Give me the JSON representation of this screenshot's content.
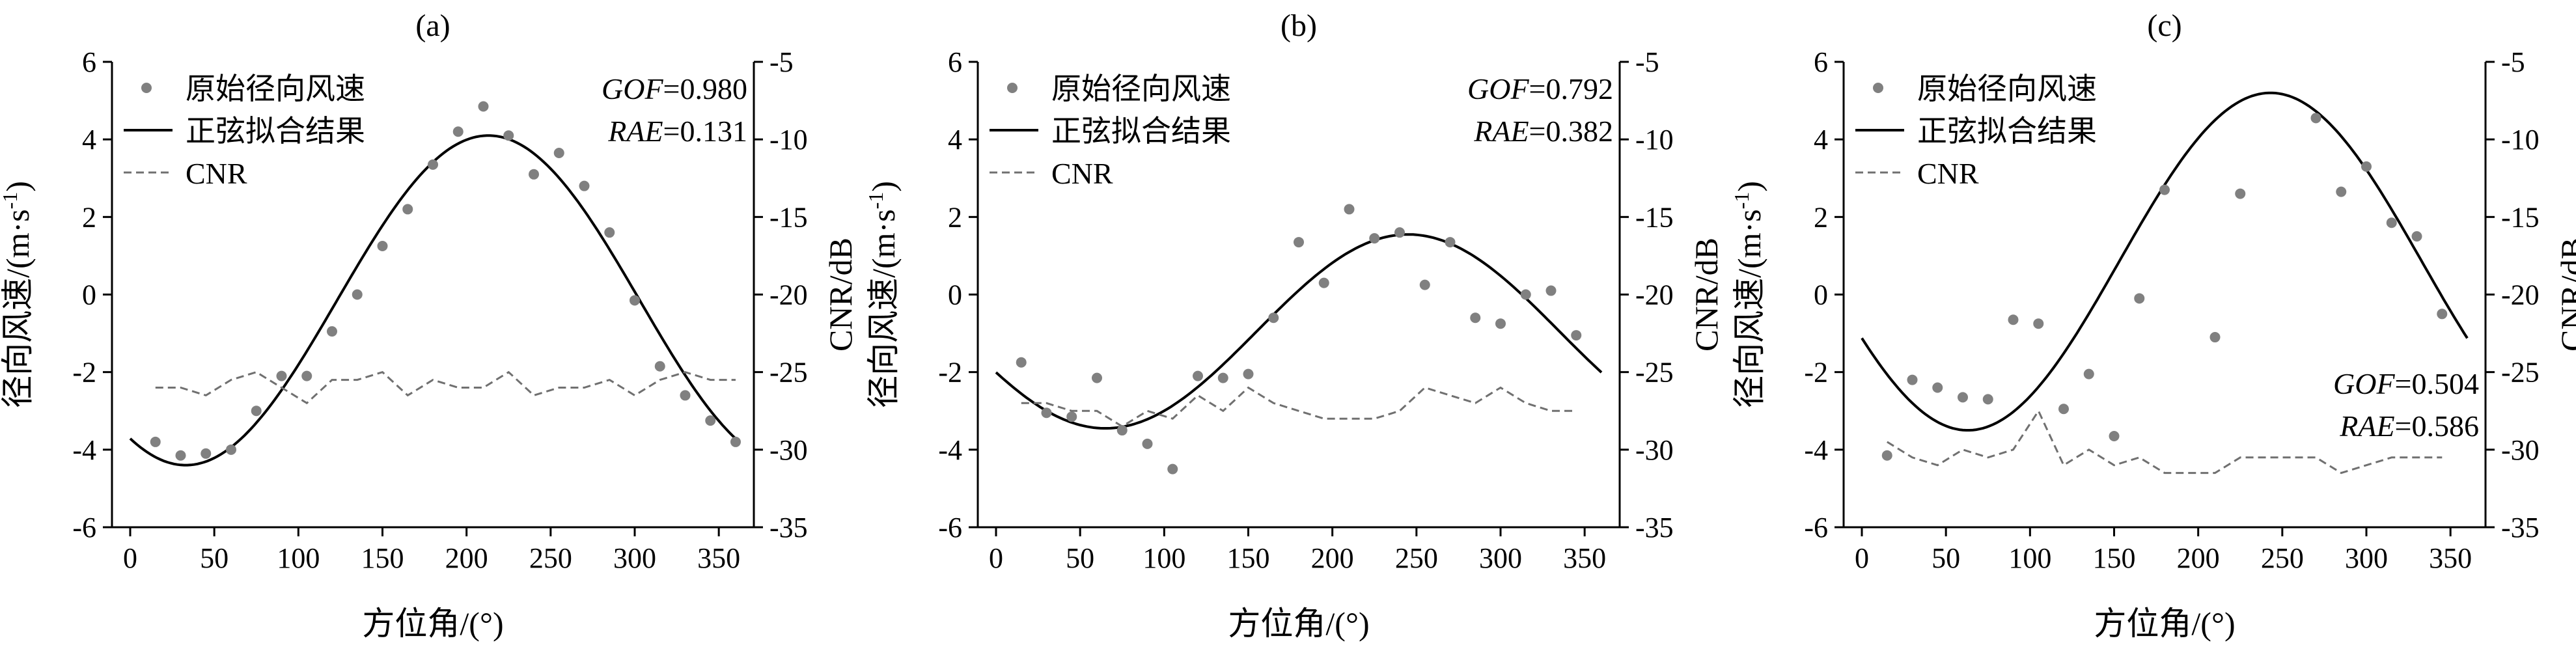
{
  "colors": {
    "points": "#808080",
    "fit": "#000000",
    "cnr": "#707070"
  },
  "chart_data": [
    {
      "type": "scatter",
      "panel_title": "(a)",
      "xlabel": "方位角/(°)",
      "ylabel": "径向风速/(m·s",
      "ylabel_sup": "-1",
      "ylabel_close": ")",
      "y2label": "CNR/dB",
      "xlim": [
        0,
        360
      ],
      "ylim": [
        -6,
        6
      ],
      "y2lim": [
        -35,
        -5
      ],
      "xticks": [
        "0",
        "50",
        "100",
        "150",
        "200",
        "250",
        "300",
        "350"
      ],
      "yticks": [
        "-6",
        "-4",
        "-2",
        "0",
        "2",
        "4",
        "6"
      ],
      "y2ticks": [
        "-35",
        "-30",
        "-25",
        "-20",
        "-15",
        "-10",
        "-5"
      ],
      "legend": [
        "原始径向风速",
        "正弦拟合结果",
        "CNR"
      ],
      "legend_position": "top-left",
      "stats": {
        "gof_label": "GOF",
        "gof_value": "=0.980",
        "rae_label": "RAE",
        "rae_value": "=0.131",
        "position": "top-right"
      },
      "series": [
        {
          "kind": "points",
          "x": [
            15,
            30,
            45,
            60,
            75,
            90,
            105,
            120,
            135,
            150,
            165,
            180,
            195,
            210,
            225,
            240,
            255,
            270,
            285,
            300,
            315,
            330,
            345,
            360
          ],
          "y": [
            -3.8,
            -4.15,
            -4.1,
            -4.0,
            -3.0,
            -2.1,
            -2.1,
            -0.95,
            0.0,
            1.25,
            2.2,
            3.35,
            4.2,
            4.85,
            4.1,
            3.1,
            3.65,
            2.8,
            1.6,
            -0.15,
            -1.85,
            -2.6,
            -3.25,
            -3.8
          ]
        },
        {
          "kind": "sine",
          "amplitude": 4.25,
          "offset": -0.15,
          "phase_deg": 213
        },
        {
          "kind": "cnr",
          "x": [
            15,
            30,
            45,
            60,
            75,
            90,
            105,
            120,
            135,
            150,
            165,
            180,
            195,
            210,
            225,
            240,
            255,
            270,
            285,
            300,
            315,
            330,
            345,
            360
          ],
          "y": [
            -26.0,
            -26.0,
            -26.5,
            -25.5,
            -25.0,
            -26.0,
            -27.0,
            -25.5,
            -25.5,
            -25.0,
            -26.5,
            -25.5,
            -26.0,
            -26.0,
            -25.0,
            -26.5,
            -26.0,
            -26.0,
            -25.5,
            -26.5,
            -25.5,
            -25.0,
            -25.5,
            -25.5
          ]
        }
      ]
    },
    {
      "type": "scatter",
      "panel_title": "(b)",
      "xlabel": "方位角/(°)",
      "ylabel": "径向风速/(m·s",
      "ylabel_sup": "-1",
      "ylabel_close": ")",
      "y2label": "CNR/dB",
      "xlim": [
        0,
        360
      ],
      "ylim": [
        -6,
        6
      ],
      "y2lim": [
        -35,
        -5
      ],
      "xticks": [
        "0",
        "50",
        "100",
        "150",
        "200",
        "250",
        "300",
        "350"
      ],
      "yticks": [
        "-6",
        "-4",
        "-2",
        "0",
        "2",
        "4",
        "6"
      ],
      "y2ticks": [
        "-35",
        "-30",
        "-25",
        "-20",
        "-15",
        "-10",
        "-5"
      ],
      "legend": [
        "原始径向风速",
        "正弦拟合结果",
        "CNR"
      ],
      "legend_position": "top-left",
      "stats": {
        "gof_label": "GOF",
        "gof_value": "=0.792",
        "rae_label": "RAE",
        "rae_value": "=0.382",
        "position": "top-right"
      },
      "series": [
        {
          "kind": "points",
          "x": [
            15,
            30,
            45,
            60,
            75,
            90,
            105,
            120,
            135,
            150,
            165,
            180,
            195,
            210,
            225,
            240,
            255,
            270,
            285,
            300,
            315,
            330,
            345
          ],
          "y": [
            -1.75,
            -3.05,
            -3.15,
            -2.15,
            -3.5,
            -3.85,
            -4.5,
            -2.1,
            -2.15,
            -2.05,
            -0.6,
            1.35,
            0.3,
            2.2,
            1.45,
            1.6,
            0.25,
            1.35,
            -0.6,
            -0.75,
            0.0,
            0.1,
            -1.05
          ]
        },
        {
          "kind": "sine",
          "amplitude": 2.5,
          "offset": -0.95,
          "phase_deg": 245
        },
        {
          "kind": "cnr",
          "x": [
            15,
            30,
            45,
            60,
            75,
            90,
            105,
            120,
            135,
            150,
            165,
            180,
            195,
            210,
            225,
            240,
            255,
            270,
            285,
            300,
            315,
            330,
            345
          ],
          "y": [
            -27.0,
            -27.0,
            -27.5,
            -27.5,
            -28.5,
            -27.5,
            -28.0,
            -26.5,
            -27.5,
            -26.0,
            -27.0,
            -27.5,
            -28.0,
            -28.0,
            -28.0,
            -27.5,
            -26.0,
            -26.5,
            -27.0,
            -26.0,
            -27.0,
            -27.5,
            -27.5
          ]
        }
      ]
    },
    {
      "type": "scatter",
      "panel_title": "(c)",
      "xlabel": "方位角/(°)",
      "ylabel": "径向风速/(m·s",
      "ylabel_sup": "-1",
      "ylabel_close": ")",
      "y2label": "CNR/dB",
      "xlim": [
        0,
        360
      ],
      "ylim": [
        -6,
        6
      ],
      "y2lim": [
        -35,
        -5
      ],
      "xticks": [
        "0",
        "50",
        "100",
        "150",
        "200",
        "250",
        "300",
        "350"
      ],
      "yticks": [
        "-6",
        "-4",
        "-2",
        "0",
        "2",
        "4",
        "6"
      ],
      "y2ticks": [
        "-35",
        "-30",
        "-25",
        "-20",
        "-15",
        "-10",
        "-5"
      ],
      "legend": [
        "原始径向风速",
        "正弦拟合结果",
        "CNR"
      ],
      "legend_position": "top-left",
      "stats": {
        "gof_label": "GOF",
        "gof_value": "=0.504",
        "rae_label": "RAE",
        "rae_value": "=0.586",
        "position": "bottom-right"
      },
      "series": [
        {
          "kind": "points",
          "x": [
            15,
            30,
            45,
            60,
            75,
            90,
            105,
            120,
            135,
            150,
            165,
            180,
            210,
            225,
            270,
            285,
            300,
            315,
            330,
            345
          ],
          "y": [
            -4.15,
            -2.2,
            -2.4,
            -2.65,
            -2.7,
            -0.65,
            -0.75,
            -2.95,
            -2.05,
            -3.65,
            -0.1,
            2.7,
            -1.1,
            2.6,
            4.55,
            2.65,
            3.3,
            1.85,
            1.5,
            -0.5
          ]
        },
        {
          "kind": "sine",
          "amplitude": 4.35,
          "offset": 0.85,
          "phase_deg": 243
        },
        {
          "kind": "cnr",
          "x": [
            15,
            30,
            45,
            60,
            75,
            90,
            105,
            120,
            135,
            150,
            165,
            180,
            195,
            210,
            225,
            240,
            255,
            270,
            285,
            300,
            315,
            330,
            345
          ],
          "y": [
            -29.5,
            -30.5,
            -31.0,
            -30.0,
            -30.5,
            -30.0,
            -27.5,
            -31.0,
            -30.0,
            -31.0,
            -30.5,
            -31.5,
            -31.5,
            -31.5,
            -30.5,
            -30.5,
            -30.5,
            -30.5,
            -31.5,
            -31.0,
            -30.5,
            -30.5,
            -30.5
          ]
        }
      ]
    }
  ]
}
